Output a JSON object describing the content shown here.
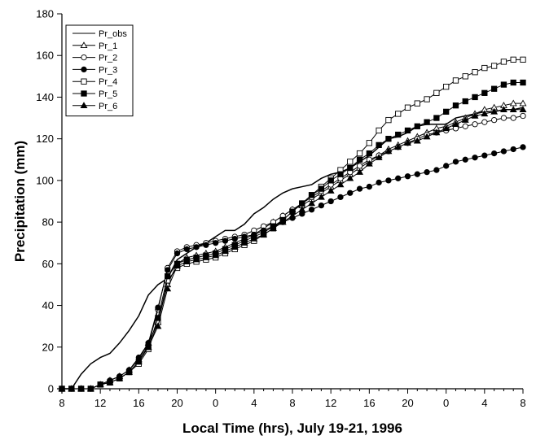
{
  "chart_data": {
    "type": "line",
    "xlabel": "Local Time (hrs), July 19-21, 1996",
    "ylabel": "Precipitation (mm)",
    "xlim": [
      0,
      48
    ],
    "ylim": [
      0,
      180
    ],
    "x_ticks": [
      0,
      4,
      8,
      12,
      16,
      20,
      24,
      28,
      32,
      36,
      40,
      44,
      48
    ],
    "x_tick_labels": [
      "8",
      "12",
      "16",
      "20",
      "0",
      "4",
      "8",
      "12",
      "16",
      "20",
      "0",
      "4",
      "8"
    ],
    "y_ticks": [
      0,
      20,
      40,
      60,
      80,
      100,
      120,
      140,
      160,
      180
    ],
    "y_tick_labels": [
      "0",
      "20",
      "40",
      "60",
      "80",
      "100",
      "120",
      "140",
      "160",
      "180"
    ],
    "grid": false,
    "legend_position": "top-left",
    "x": [
      0,
      1,
      2,
      3,
      4,
      5,
      6,
      7,
      8,
      9,
      10,
      11,
      12,
      13,
      14,
      15,
      16,
      17,
      18,
      19,
      20,
      21,
      22,
      23,
      24,
      25,
      26,
      27,
      28,
      29,
      30,
      31,
      32,
      33,
      34,
      35,
      36,
      37,
      38,
      39,
      40,
      41,
      42,
      43,
      44,
      45,
      46,
      47,
      48
    ],
    "series": [
      {
        "name": "Pr_obs",
        "marker": "none",
        "values": [
          0,
          0,
          7,
          12,
          15,
          17,
          22,
          28,
          35,
          45,
          50,
          53,
          62,
          65,
          68,
          70,
          73,
          76,
          76,
          79,
          84,
          87,
          91,
          94,
          96,
          97,
          98,
          101,
          103,
          104,
          106,
          109,
          112,
          116,
          120,
          121,
          123,
          126,
          127,
          127,
          127,
          130,
          131,
          132,
          133,
          133,
          134,
          134,
          135
        ]
      },
      {
        "name": "Pr_1",
        "marker": "triangle-open",
        "values": [
          0,
          0,
          0,
          0,
          2,
          4,
          6,
          9,
          14,
          22,
          32,
          50,
          60,
          63,
          64,
          65,
          66,
          68,
          70,
          72,
          74,
          77,
          80,
          83,
          86,
          88,
          91,
          94,
          97,
          100,
          103,
          106,
          109,
          112,
          115,
          117,
          119,
          121,
          123,
          125,
          126,
          128,
          130,
          132,
          134,
          135,
          136,
          137,
          137
        ]
      },
      {
        "name": "Pr_2",
        "marker": "circle-open",
        "values": [
          0,
          0,
          0,
          0,
          2,
          3,
          5,
          8,
          13,
          21,
          38,
          58,
          66,
          68,
          69,
          70,
          71,
          72,
          73,
          74,
          76,
          78,
          80,
          83,
          86,
          89,
          92,
          95,
          98,
          101,
          104,
          107,
          110,
          112,
          114,
          116,
          118,
          120,
          122,
          123,
          124,
          125,
          126,
          127,
          128,
          129,
          130,
          130,
          131
        ]
      },
      {
        "name": "Pr_3",
        "marker": "circle-filled",
        "values": [
          0,
          0,
          0,
          0,
          2,
          4,
          6,
          9,
          15,
          22,
          39,
          57,
          65,
          67,
          68,
          69,
          70,
          71,
          72,
          73,
          74,
          76,
          78,
          80,
          82,
          84,
          86,
          88,
          90,
          92,
          94,
          96,
          97,
          99,
          100,
          101,
          102,
          103,
          104,
          105,
          107,
          109,
          110,
          111,
          112,
          113,
          114,
          115,
          116
        ]
      },
      {
        "name": "Pr_4",
        "marker": "square-open",
        "values": [
          0,
          0,
          0,
          0,
          2,
          3,
          5,
          8,
          12,
          19,
          32,
          52,
          58,
          60,
          61,
          62,
          63,
          65,
          67,
          69,
          71,
          74,
          77,
          81,
          85,
          89,
          93,
          97,
          101,
          105,
          109,
          113,
          118,
          124,
          129,
          132,
          135,
          137,
          139,
          142,
          145,
          148,
          150,
          152,
          154,
          155,
          157,
          158,
          158
        ]
      },
      {
        "name": "Pr_5",
        "marker": "square-filled",
        "values": [
          0,
          0,
          0,
          0,
          2,
          3,
          5,
          8,
          13,
          20,
          34,
          54,
          60,
          62,
          63,
          64,
          65,
          67,
          69,
          71,
          73,
          75,
          78,
          81,
          85,
          89,
          93,
          96,
          100,
          103,
          106,
          110,
          113,
          117,
          120,
          122,
          124,
          126,
          128,
          130,
          133,
          136,
          138,
          140,
          142,
          144,
          146,
          147,
          147
        ]
      },
      {
        "name": "Pr_6",
        "marker": "triangle-filled",
        "values": [
          0,
          0,
          0,
          0,
          2,
          3,
          5,
          8,
          13,
          20,
          30,
          48,
          59,
          61,
          62,
          63,
          64,
          66,
          68,
          70,
          72,
          74,
          77,
          80,
          83,
          86,
          89,
          92,
          95,
          98,
          101,
          104,
          108,
          111,
          114,
          116,
          118,
          119,
          121,
          123,
          125,
          127,
          129,
          131,
          132,
          133,
          134,
          134,
          134
        ]
      }
    ]
  }
}
